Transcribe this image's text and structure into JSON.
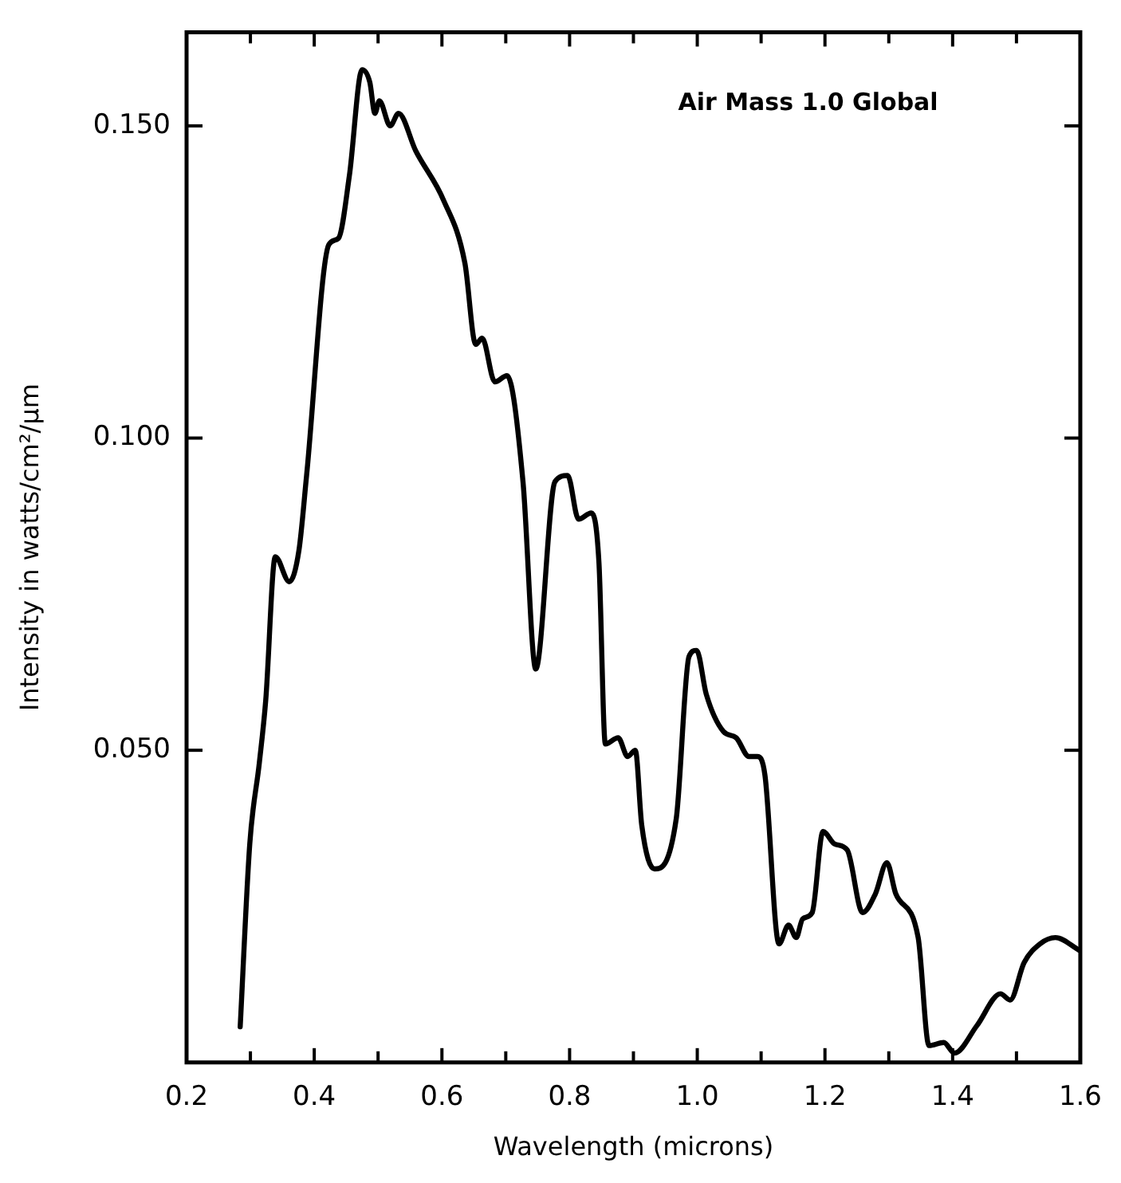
{
  "chart_data": {
    "type": "line",
    "xlabel": "Wavelength (microns)",
    "ylabel": "Intensity in watts/cm²/μm",
    "annotations": [
      "Air Mass 1.0 Global"
    ],
    "xlim": [
      0.2,
      1.6
    ],
    "ylim": [
      0,
      0.165
    ],
    "xticks": [
      0.2,
      {
        "value": 0.3,
        "label": null
      },
      0.4,
      {
        "value": 0.5,
        "label": null
      },
      0.6,
      {
        "value": 0.7,
        "label": null
      },
      0.8,
      {
        "value": 0.9,
        "label": null
      },
      {
        "value": 1.0,
        "label": "1.0"
      },
      {
        "value": 1.1,
        "label": null
      },
      1.2,
      {
        "value": 1.3,
        "label": null
      },
      1.4,
      {
        "value": 1.5,
        "label": null
      },
      1.6
    ],
    "yticks": [
      {
        "value": 0.05,
        "label": "0.050"
      },
      {
        "value": 0.1,
        "label": "0.100"
      },
      {
        "value": 0.15,
        "label": "0.150"
      }
    ],
    "grid": false,
    "legend": false,
    "marker": "none",
    "line_style": "solid",
    "series": [
      {
        "color": "#000000",
        "x": [
          0.284,
          0.299,
          0.314,
          0.324,
          0.339,
          0.361,
          0.376,
          0.388,
          0.423,
          0.438,
          0.455,
          0.475,
          0.487,
          0.495,
          0.502,
          0.519,
          0.532,
          0.559,
          0.603,
          0.636,
          0.653,
          0.663,
          0.683,
          0.702,
          0.727,
          0.747,
          0.777,
          0.797,
          0.814,
          0.834,
          0.846,
          0.856,
          0.876,
          0.891,
          0.903,
          0.913,
          0.933,
          0.967,
          0.987,
          0.999,
          1.014,
          1.041,
          1.061,
          1.081,
          1.094,
          1.106,
          1.128,
          1.143,
          1.155,
          1.165,
          1.18,
          1.197,
          1.215,
          1.235,
          1.259,
          1.279,
          1.297,
          1.311,
          1.346,
          1.363,
          1.386,
          1.403,
          1.438,
          1.475,
          1.49,
          1.512,
          1.537,
          1.561,
          1.598
        ],
        "values": [
          0.0057,
          0.035,
          0.048,
          0.058,
          0.081,
          0.077,
          0.082,
          0.094,
          0.131,
          0.132,
          0.142,
          0.159,
          0.157,
          0.152,
          0.154,
          0.15,
          0.152,
          0.146,
          0.138,
          0.128,
          0.115,
          0.116,
          0.109,
          0.11,
          0.093,
          0.063,
          0.093,
          0.094,
          0.087,
          0.088,
          0.08,
          0.051,
          0.052,
          0.049,
          0.05,
          0.038,
          0.031,
          0.039,
          0.065,
          0.066,
          0.059,
          0.053,
          0.052,
          0.049,
          0.049,
          0.046,
          0.019,
          0.022,
          0.02,
          0.023,
          0.024,
          0.037,
          0.035,
          0.034,
          0.024,
          0.027,
          0.032,
          0.027,
          0.02,
          0.0027,
          0.0032,
          0.0015,
          0.0059,
          0.011,
          0.01,
          0.016,
          0.019,
          0.02,
          0.018
        ]
      }
    ]
  }
}
